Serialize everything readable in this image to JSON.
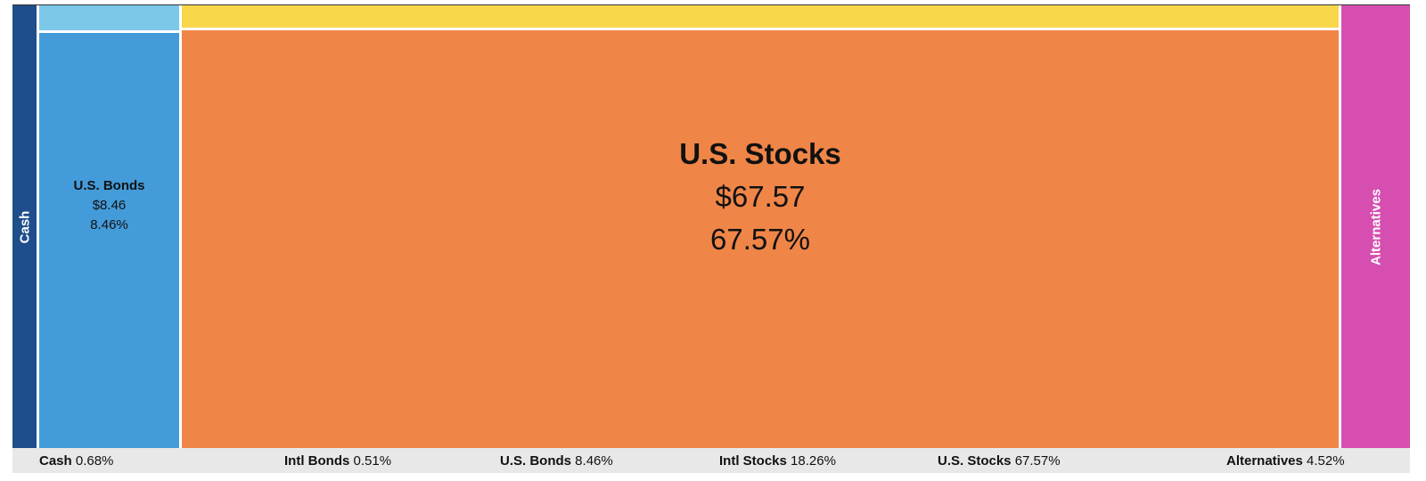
{
  "chart_data": {
    "type": "treemap",
    "currency_prefix": "$",
    "items": [
      {
        "name": "Cash",
        "value": 0.68,
        "color": "#1f4e8c",
        "label_style": "vertical",
        "label_color": "#ffffff"
      },
      {
        "name": "Intl Bonds",
        "value": 0.51,
        "color": "#7cc8e8",
        "label_style": "none"
      },
      {
        "name": "U.S. Bonds",
        "value": 8.46,
        "color": "#449bda",
        "label_style": "small",
        "display_value": "$8.46",
        "display_pct": "8.46%"
      },
      {
        "name": "Intl Stocks",
        "value": 18.26,
        "color": "#f8d84a",
        "label_style": "none"
      },
      {
        "name": "U.S. Stocks",
        "value": 67.57,
        "color": "#f08548",
        "label_style": "large",
        "display_value": "$67.57",
        "display_pct": "67.57%"
      },
      {
        "name": "Alternatives",
        "value": 4.52,
        "color": "#d64fb0",
        "label_style": "vertical",
        "label_color": "#ffffff"
      }
    ]
  },
  "legend": [
    {
      "name": "Cash",
      "pct": "0.68%"
    },
    {
      "name": "Intl Bonds",
      "pct": "0.51%"
    },
    {
      "name": "U.S. Bonds",
      "pct": "8.46%"
    },
    {
      "name": "Intl Stocks",
      "pct": "18.26%"
    },
    {
      "name": "U.S. Stocks",
      "pct": "67.57%"
    },
    {
      "name": "Alternatives",
      "pct": "4.52%"
    }
  ]
}
